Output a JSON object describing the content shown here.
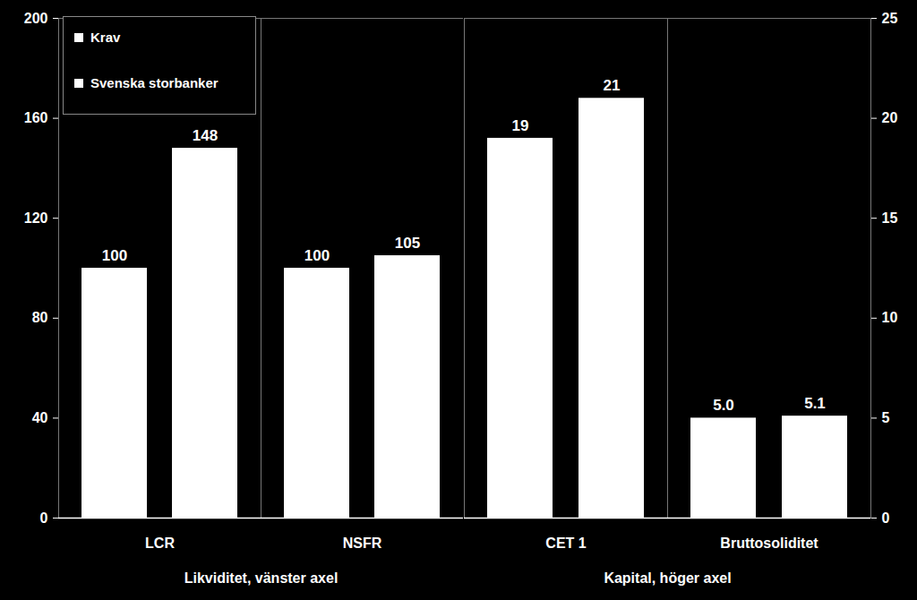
{
  "chart_data": [
    {
      "type": "bar",
      "categories": [
        "LCR",
        "NSFR"
      ],
      "x_label": "Likviditet, vänster axel",
      "series": [
        {
          "name": "Krav",
          "color": "#ffffff",
          "values": [
            100,
            100
          ]
        },
        {
          "name": "Svenska storbanker",
          "color": "#ffffff",
          "values": [
            148,
            105
          ]
        }
      ],
      "ylim": [
        0,
        200
      ],
      "yticks": [
        0,
        40,
        80,
        120,
        160,
        200
      ],
      "grid": false,
      "legend": "top-left",
      "data_labels": true
    },
    {
      "type": "bar",
      "categories": [
        "CET 1",
        "Bruttosoliditet"
      ],
      "x_label": "Kapital, höger axel",
      "series": [
        {
          "name": "Krav",
          "color": "#ffffff",
          "axis": "y2",
          "values": [
            19,
            5.0
          ],
          "value_labels": [
            "19",
            "5.0"
          ]
        },
        {
          "name": "Svenska storbanker",
          "color": "#ffffff",
          "axis": "y2",
          "values": [
            21,
            5.1
          ],
          "value_labels": [
            "21",
            "5.1"
          ]
        }
      ],
      "y2lim": [
        0,
        25
      ],
      "y2ticks": [
        0,
        5,
        10,
        15,
        20,
        25
      ],
      "grid": false,
      "data_labels": true
    }
  ]
}
